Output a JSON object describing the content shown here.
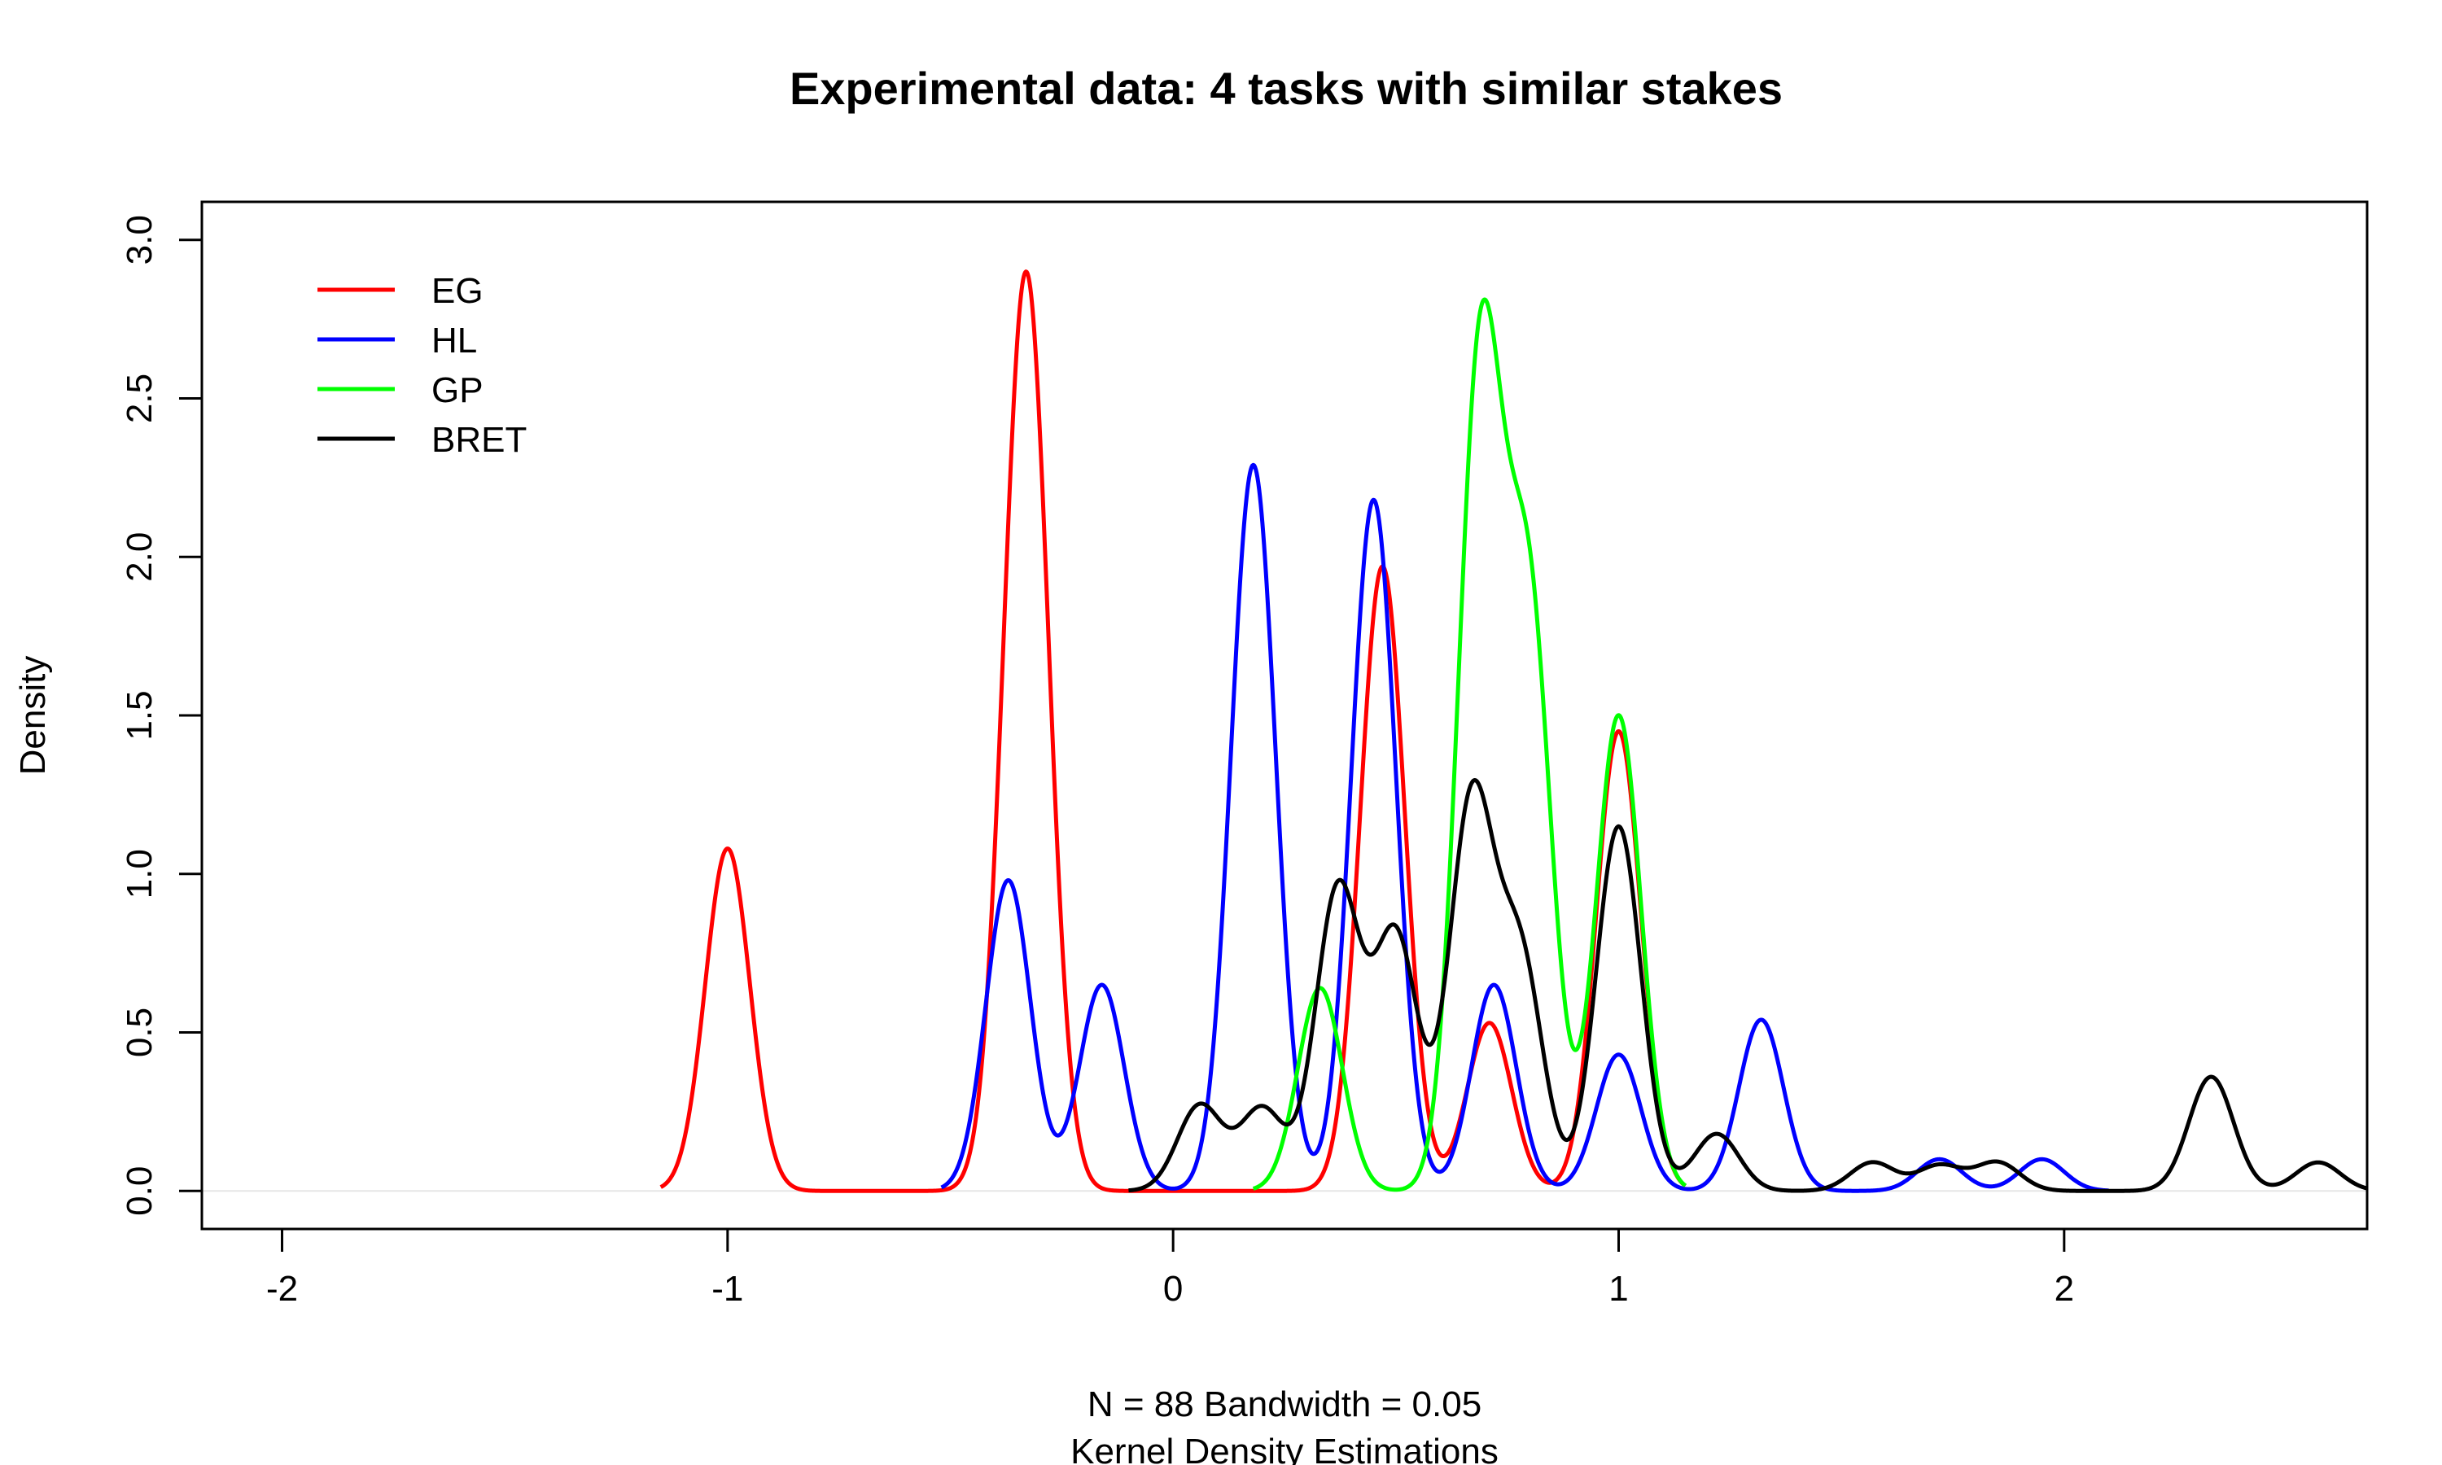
{
  "chart_data": {
    "type": "line",
    "title": "Experimental data: 4 tasks with similar stakes",
    "xlabel_line1": "N = 88   Bandwidth = 0.05",
    "xlabel_line2": "Kernel Density Estimations",
    "ylabel": "Density",
    "xlim": [
      -2.18,
      2.68
    ],
    "ylim": [
      -0.12,
      3.12
    ],
    "x_ticks": [
      -2,
      -1,
      0,
      1,
      2
    ],
    "x_tick_labels": [
      "-2",
      "-1",
      "0",
      "1",
      "2"
    ],
    "y_ticks": [
      0.0,
      0.5,
      1.0,
      1.5,
      2.0,
      2.5,
      3.0
    ],
    "y_tick_labels": [
      "0.0",
      "0.5",
      "1.0",
      "1.5",
      "2.0",
      "2.5",
      "3.0"
    ],
    "legend_position": "top-left",
    "baseline_y": 0,
    "series": [
      {
        "name": "EG",
        "color": "#ff0000",
        "peaks": [
          {
            "x": -1.0,
            "h": 1.08
          },
          {
            "x": -0.33,
            "h": 2.9
          },
          {
            "x": 0.47,
            "h": 1.97
          },
          {
            "x": 0.71,
            "h": 0.53
          },
          {
            "x": 1.0,
            "h": 1.45
          }
        ],
        "sigma": 0.05,
        "domain": [
          -1.15,
          1.15
        ]
      },
      {
        "name": "HL",
        "color": "#0000ff",
        "peaks": [
          {
            "x": -0.37,
            "h": 0.98
          },
          {
            "x": -0.16,
            "h": 0.65
          },
          {
            "x": 0.18,
            "h": 2.29
          },
          {
            "x": 0.45,
            "h": 2.18
          },
          {
            "x": 0.72,
            "h": 0.65
          },
          {
            "x": 1.0,
            "h": 0.43
          },
          {
            "x": 1.32,
            "h": 0.54
          },
          {
            "x": 1.72,
            "h": 0.1
          },
          {
            "x": 1.95,
            "h": 0.1
          }
        ],
        "sigma": 0.05,
        "domain": [
          -0.52,
          2.1
        ]
      },
      {
        "name": "GP",
        "color": "#00ff00",
        "peaks": [
          {
            "x": 0.33,
            "h": 0.64
          },
          {
            "x": 0.69,
            "h": 2.62
          },
          {
            "x": 0.8,
            "h": 1.8
          },
          {
            "x": 1.0,
            "h": 1.5
          }
        ],
        "sigma": 0.05,
        "domain": [
          0.18,
          1.15
        ]
      },
      {
        "name": "BRET",
        "color": "#000000",
        "peaks": [
          {
            "x": 0.06,
            "h": 0.27
          },
          {
            "x": 0.2,
            "h": 0.26
          },
          {
            "x": 0.37,
            "h": 0.95
          },
          {
            "x": 0.5,
            "h": 0.8
          },
          {
            "x": 0.67,
            "h": 1.22
          },
          {
            "x": 0.78,
            "h": 0.72
          },
          {
            "x": 1.0,
            "h": 1.15
          },
          {
            "x": 1.22,
            "h": 0.18
          },
          {
            "x": 1.57,
            "h": 0.09
          },
          {
            "x": 1.72,
            "h": 0.08
          },
          {
            "x": 1.85,
            "h": 0.09
          },
          {
            "x": 2.33,
            "h": 0.36
          },
          {
            "x": 2.57,
            "h": 0.09
          }
        ],
        "sigma": 0.05,
        "domain": [
          -0.1,
          2.68
        ]
      }
    ]
  }
}
